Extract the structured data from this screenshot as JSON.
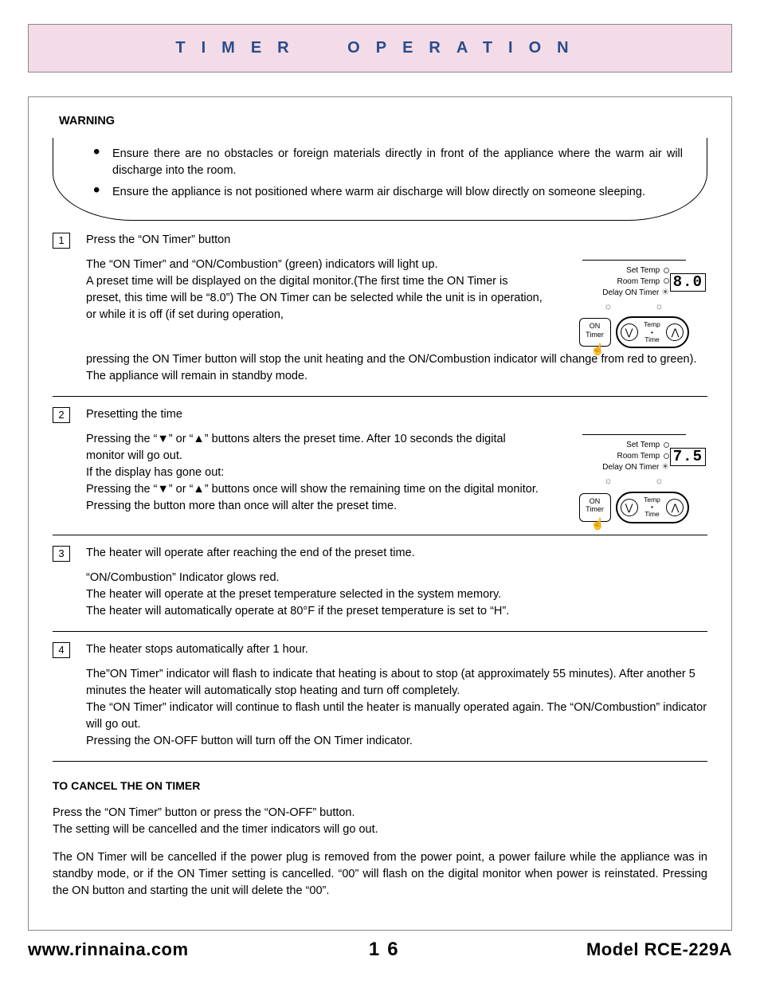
{
  "header": {
    "title": "TIMER OPERATION",
    "band_bg": "#f3dce7",
    "title_color": "#2a4b8d"
  },
  "warning": {
    "heading": "WARNING",
    "items": [
      "Ensure there are no obstacles or foreign materials directly in front of the appliance where the warm air will discharge into the room.",
      "Ensure the appliance is not positioned where warm air discharge will blow directly on someone sleeping."
    ]
  },
  "steps": [
    {
      "num": "1",
      "lead": "Press the “ON Timer” button",
      "text_left": "The “ON Timer” and “ON/Combustion” (green) indicators will light up.\nA preset time will be displayed on the digital monitor.(The first time the ON Timer is preset, this time will be “8.0”) The ON Timer can be selected while the unit is in operation, or while it is off (if set during operation,",
      "text_after": "pressing the ON Timer button will stop the unit heating and the ON/Combustion indicator will change from red to green). The appliance will remain in standby mode.",
      "fig": {
        "digital": "8.0",
        "set": "Set Temp",
        "room": "Room Temp",
        "delay": "Delay ON Timer",
        "on": "ON",
        "timer": "Timer",
        "temp": "Temp",
        "time": "Time"
      }
    },
    {
      "num": "2",
      "lead": "Presetting the time",
      "text_left": "Pressing the “▼” or “▲” buttons alters the preset time. After 10 seconds the digital monitor will go out.\nIf the display has gone out:\nPressing the “▼” or “▲” buttons once will show the remaining time on the digital monitor.\nPressing the button more than once will alter the preset time.",
      "text_after": "",
      "fig": {
        "digital": "7.5",
        "set": "Set Temp",
        "room": "Room Temp",
        "delay": "Delay ON Timer",
        "on": "ON",
        "timer": "Timer",
        "temp": "Temp",
        "time": "Time"
      }
    },
    {
      "num": "3",
      "lead": "The heater will operate after reaching the end of the preset time.",
      "text_left": "“ON/Combustion” Indicator glows red.\nThe heater will operate at the preset temperature selected in the system memory.\nThe heater will automatically operate at 80°F if the preset temperature is set to “H”.",
      "text_after": "",
      "fig": null
    },
    {
      "num": "4",
      "lead": "The heater stops automatically after 1 hour.",
      "text_left": "The”ON Timer” indicator will flash to indicate that heating is about to stop (at approximately 55 minutes). After another 5 minutes the heater will automatically stop heating and turn off completely.\nThe “ON Timer” indicator will continue to flash until the heater is manually operated again. The “ON/Combustion” indicator will go out.\nPressing the ON-OFF button will turn off the ON Timer indicator.",
      "text_after": "",
      "fig": null
    }
  ],
  "cancel": {
    "heading": "TO CANCEL THE ON TIMER",
    "p1": "Press the “ON Timer” button or press the “ON-OFF” button.\nThe setting will be cancelled and the timer indicators will go out.",
    "p2": "The ON Timer will be cancelled if the power plug is removed from the power point, a power failure while the appliance was in standby mode, or if the ON Timer setting is cancelled. “00” will flash on the digital monitor when power is reinstated. Pressing the ON button and starting the unit will delete the “00”."
  },
  "footer": {
    "url": "www.rinnaina.com",
    "page": "16",
    "model": "Model RCE-229A"
  }
}
